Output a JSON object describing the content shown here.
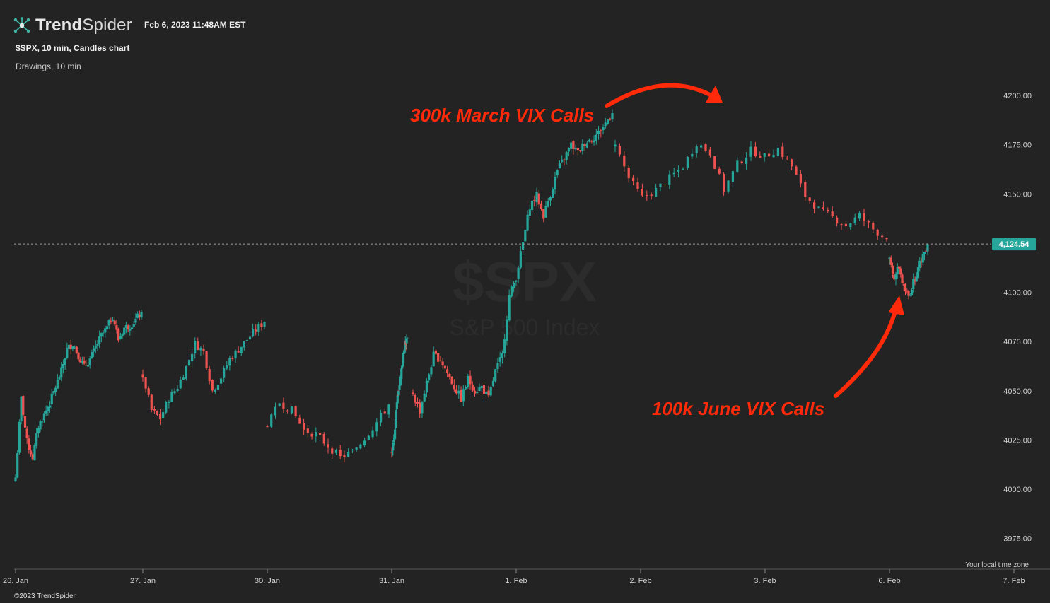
{
  "header": {
    "brand_bold": "Trend",
    "brand_light": "Spider",
    "timestamp": "Feb 6, 2023 11:48AM EST",
    "subtitle": "$SPX, 10 min, Candles chart",
    "drawings": "Drawings, 10 min"
  },
  "footer": {
    "copyright": "©2023 TrendSpider",
    "timezone_note": "Your local time zone"
  },
  "colors": {
    "background": "#232323",
    "up": "#26a69a",
    "down": "#ef5350",
    "annotation": "#ff2a0a",
    "price_badge": "#26a69a"
  },
  "chart_data": {
    "type": "candlestick",
    "symbol": "$SPX",
    "watermark_symbol": "$SPX",
    "watermark_name": "S&P 500 Index",
    "interval": "10 min",
    "ylim": [
      3965,
      4210
    ],
    "y_ticks": [
      4200,
      4175,
      4150,
      4125,
      4100,
      4075,
      4050,
      4025,
      4000,
      3975
    ],
    "y_tick_labels": [
      "4200.00",
      "4175.00",
      "4150.00",
      "4125.00",
      "4100.00",
      "4075.00",
      "4050.00",
      "4025.00",
      "4000.00",
      "3975.00"
    ],
    "x_tick_labels": [
      "26. Jan",
      "27. Jan",
      "30. Jan",
      "31. Jan",
      "1. Feb",
      "2. Feb",
      "3. Feb",
      "6. Feb",
      "7. Feb"
    ],
    "current_price": 4124.54,
    "current_price_label": "4,124.54",
    "sessions": [
      {
        "label": "26. Jan",
        "anchors": [
          4006,
          4046,
          4024,
          4016,
          4032,
          4038,
          4044,
          4052,
          4060,
          4071,
          4074,
          4068,
          4062,
          4066,
          4072,
          4078,
          4082,
          4088,
          4076,
          4082,
          4083,
          4086,
          4090
        ]
      },
      {
        "label": "27. Jan",
        "anchors": [
          4058,
          4040,
          4036,
          4046,
          4052,
          4062,
          4074,
          4070,
          4050,
          4057,
          4066,
          4071,
          4076,
          4081,
          4085
        ]
      },
      {
        "label": "30. Jan",
        "anchors": [
          4032,
          4044,
          4040,
          4030,
          4028,
          4022,
          4016,
          4019,
          4026,
          4034,
          4043
        ]
      },
      {
        "label": "31. Jan",
        "anchors": [
          4018,
          4024,
          4035,
          4047,
          4053,
          4061,
          4068,
          4074,
          4077
        ]
      },
      {
        "label": "1. Feb",
        "anchors": [
          4048,
          4040,
          4054,
          4068,
          4066,
          4059,
          4052,
          4046,
          4056,
          4050,
          4052,
          4046,
          4060,
          4068,
          4098,
          4108,
          4125,
          4144,
          4149,
          4139,
          4150,
          4162,
          4168,
          4175,
          4171,
          4176,
          4178,
          4181,
          4186,
          4191
        ]
      },
      {
        "label": "2. Feb",
        "anchors": [
          4175,
          4158,
          4148,
          4152,
          4158,
          4164,
          4176,
          4171,
          4152,
          4165,
          4172,
          4169,
          4173,
          4164,
          4149,
          4142,
          4138,
          4134,
          4139,
          4132,
          4127
        ]
      },
      {
        "label": "6. Feb",
        "anchors": [
          4116,
          4108,
          4113,
          4102,
          4098,
          4105,
          4112,
          4119,
          4124.54
        ]
      }
    ],
    "annotations": [
      {
        "text": "300k March VIX Calls",
        "points_to": "session high 2. Feb"
      },
      {
        "text": "100k June VIX Calls",
        "points_to": "session low 6. Feb"
      }
    ]
  }
}
